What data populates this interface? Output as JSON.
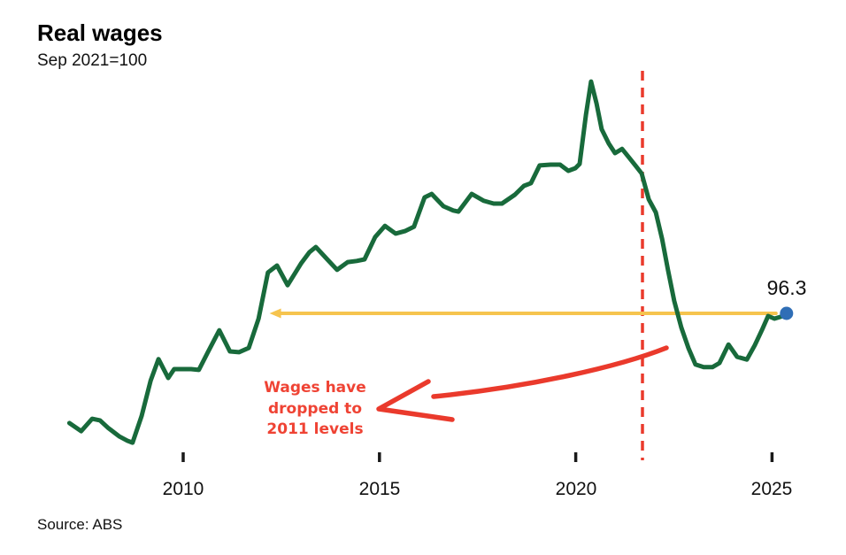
{
  "header": {
    "title": "Real wages",
    "subtitle": "Sep 2021=100"
  },
  "footer": {
    "source": "Source: ABS"
  },
  "annotation": {
    "line1": "Wages have",
    "line2": "dropped to",
    "line3": "2011 levels"
  },
  "x_axis": {
    "tick_years": [
      2010,
      2015,
      2020,
      2025
    ],
    "tick_labels": [
      "2010",
      "2015",
      "2020",
      "2025"
    ]
  },
  "colors": {
    "line": "#186a3b",
    "reference_line": "#ea3a2c",
    "annotation_text": "#ef4334",
    "hand_arrow": "#ea3a2c",
    "level_arrow": "#f6c44e",
    "end_dot": "#2f6eb6",
    "axis_tick": "#1a1a1a"
  },
  "chart_data": {
    "type": "line",
    "title": "Real wages",
    "subtitle": "Sep 2021=100",
    "source": "Source: ABS",
    "grid": false,
    "x_range": [
      2006.9,
      2025.6
    ],
    "y_range": [
      92.3,
      102.8
    ],
    "x_ticks": [
      2010,
      2015,
      2020,
      2025
    ],
    "series": [
      {
        "name": "Real wages index (Sep 2021=100)",
        "color": "#186a3b",
        "points": [
          [
            2007.1,
            93.45
          ],
          [
            2007.4,
            93.24
          ],
          [
            2007.68,
            93.56
          ],
          [
            2007.88,
            93.52
          ],
          [
            2008.08,
            93.33
          ],
          [
            2008.38,
            93.1
          ],
          [
            2008.58,
            92.99
          ],
          [
            2008.71,
            92.94
          ],
          [
            2008.94,
            93.63
          ],
          [
            2009.17,
            94.55
          ],
          [
            2009.37,
            95.11
          ],
          [
            2009.62,
            94.62
          ],
          [
            2009.77,
            94.85
          ],
          [
            2010.0,
            94.85
          ],
          [
            2010.2,
            94.85
          ],
          [
            2010.4,
            94.83
          ],
          [
            2010.63,
            95.29
          ],
          [
            2010.92,
            95.86
          ],
          [
            2011.19,
            95.31
          ],
          [
            2011.42,
            95.29
          ],
          [
            2011.67,
            95.4
          ],
          [
            2011.92,
            96.16
          ],
          [
            2012.16,
            97.36
          ],
          [
            2012.39,
            97.54
          ],
          [
            2012.66,
            97.03
          ],
          [
            2013.0,
            97.59
          ],
          [
            2013.22,
            97.89
          ],
          [
            2013.38,
            98.02
          ],
          [
            2013.67,
            97.7
          ],
          [
            2013.92,
            97.43
          ],
          [
            2014.19,
            97.63
          ],
          [
            2014.42,
            97.66
          ],
          [
            2014.62,
            97.7
          ],
          [
            2014.89,
            98.28
          ],
          [
            2015.14,
            98.57
          ],
          [
            2015.41,
            98.37
          ],
          [
            2015.66,
            98.44
          ],
          [
            2015.88,
            98.55
          ],
          [
            2016.15,
            99.31
          ],
          [
            2016.33,
            99.4
          ],
          [
            2016.63,
            99.08
          ],
          [
            2016.88,
            98.97
          ],
          [
            2017.01,
            98.94
          ],
          [
            2017.35,
            99.4
          ],
          [
            2017.66,
            99.22
          ],
          [
            2017.91,
            99.15
          ],
          [
            2018.12,
            99.15
          ],
          [
            2018.45,
            99.38
          ],
          [
            2018.68,
            99.61
          ],
          [
            2018.86,
            99.68
          ],
          [
            2019.08,
            100.14
          ],
          [
            2019.36,
            100.16
          ],
          [
            2019.6,
            100.16
          ],
          [
            2019.81,
            100.0
          ],
          [
            2019.99,
            100.07
          ],
          [
            2020.1,
            100.18
          ],
          [
            2020.26,
            101.45
          ],
          [
            2020.39,
            102.32
          ],
          [
            2020.53,
            101.75
          ],
          [
            2020.66,
            101.08
          ],
          [
            2020.84,
            100.71
          ],
          [
            2021.0,
            100.46
          ],
          [
            2021.18,
            100.57
          ],
          [
            2021.34,
            100.37
          ],
          [
            2021.52,
            100.14
          ],
          [
            2021.68,
            99.93
          ],
          [
            2021.86,
            99.26
          ],
          [
            2022.04,
            98.92
          ],
          [
            2022.2,
            98.23
          ],
          [
            2022.35,
            97.43
          ],
          [
            2022.51,
            96.62
          ],
          [
            2022.69,
            95.93
          ],
          [
            2022.87,
            95.4
          ],
          [
            2023.05,
            94.97
          ],
          [
            2023.26,
            94.9
          ],
          [
            2023.48,
            94.9
          ],
          [
            2023.66,
            95.01
          ],
          [
            2023.89,
            95.49
          ],
          [
            2024.11,
            95.17
          ],
          [
            2024.36,
            95.1
          ],
          [
            2024.56,
            95.47
          ],
          [
            2024.74,
            95.86
          ],
          [
            2024.9,
            96.23
          ],
          [
            2025.06,
            96.16
          ],
          [
            2025.22,
            96.21
          ],
          [
            2025.37,
            96.3
          ]
        ]
      }
    ],
    "reference_vline": {
      "x": 2021.7,
      "style": "dashed",
      "color": "#ea3a2c"
    },
    "level_arrow": {
      "value": 96.3,
      "from_year": 2025.1,
      "to_year": 2012.2,
      "color": "#f6c44e",
      "direction": "left"
    },
    "end_point": {
      "x": 2025.37,
      "y": 96.3,
      "label": "96.3",
      "color": "#2f6eb6"
    },
    "annotation": {
      "text": "Wages have dropped to 2011 levels",
      "color": "#ef4334"
    }
  }
}
